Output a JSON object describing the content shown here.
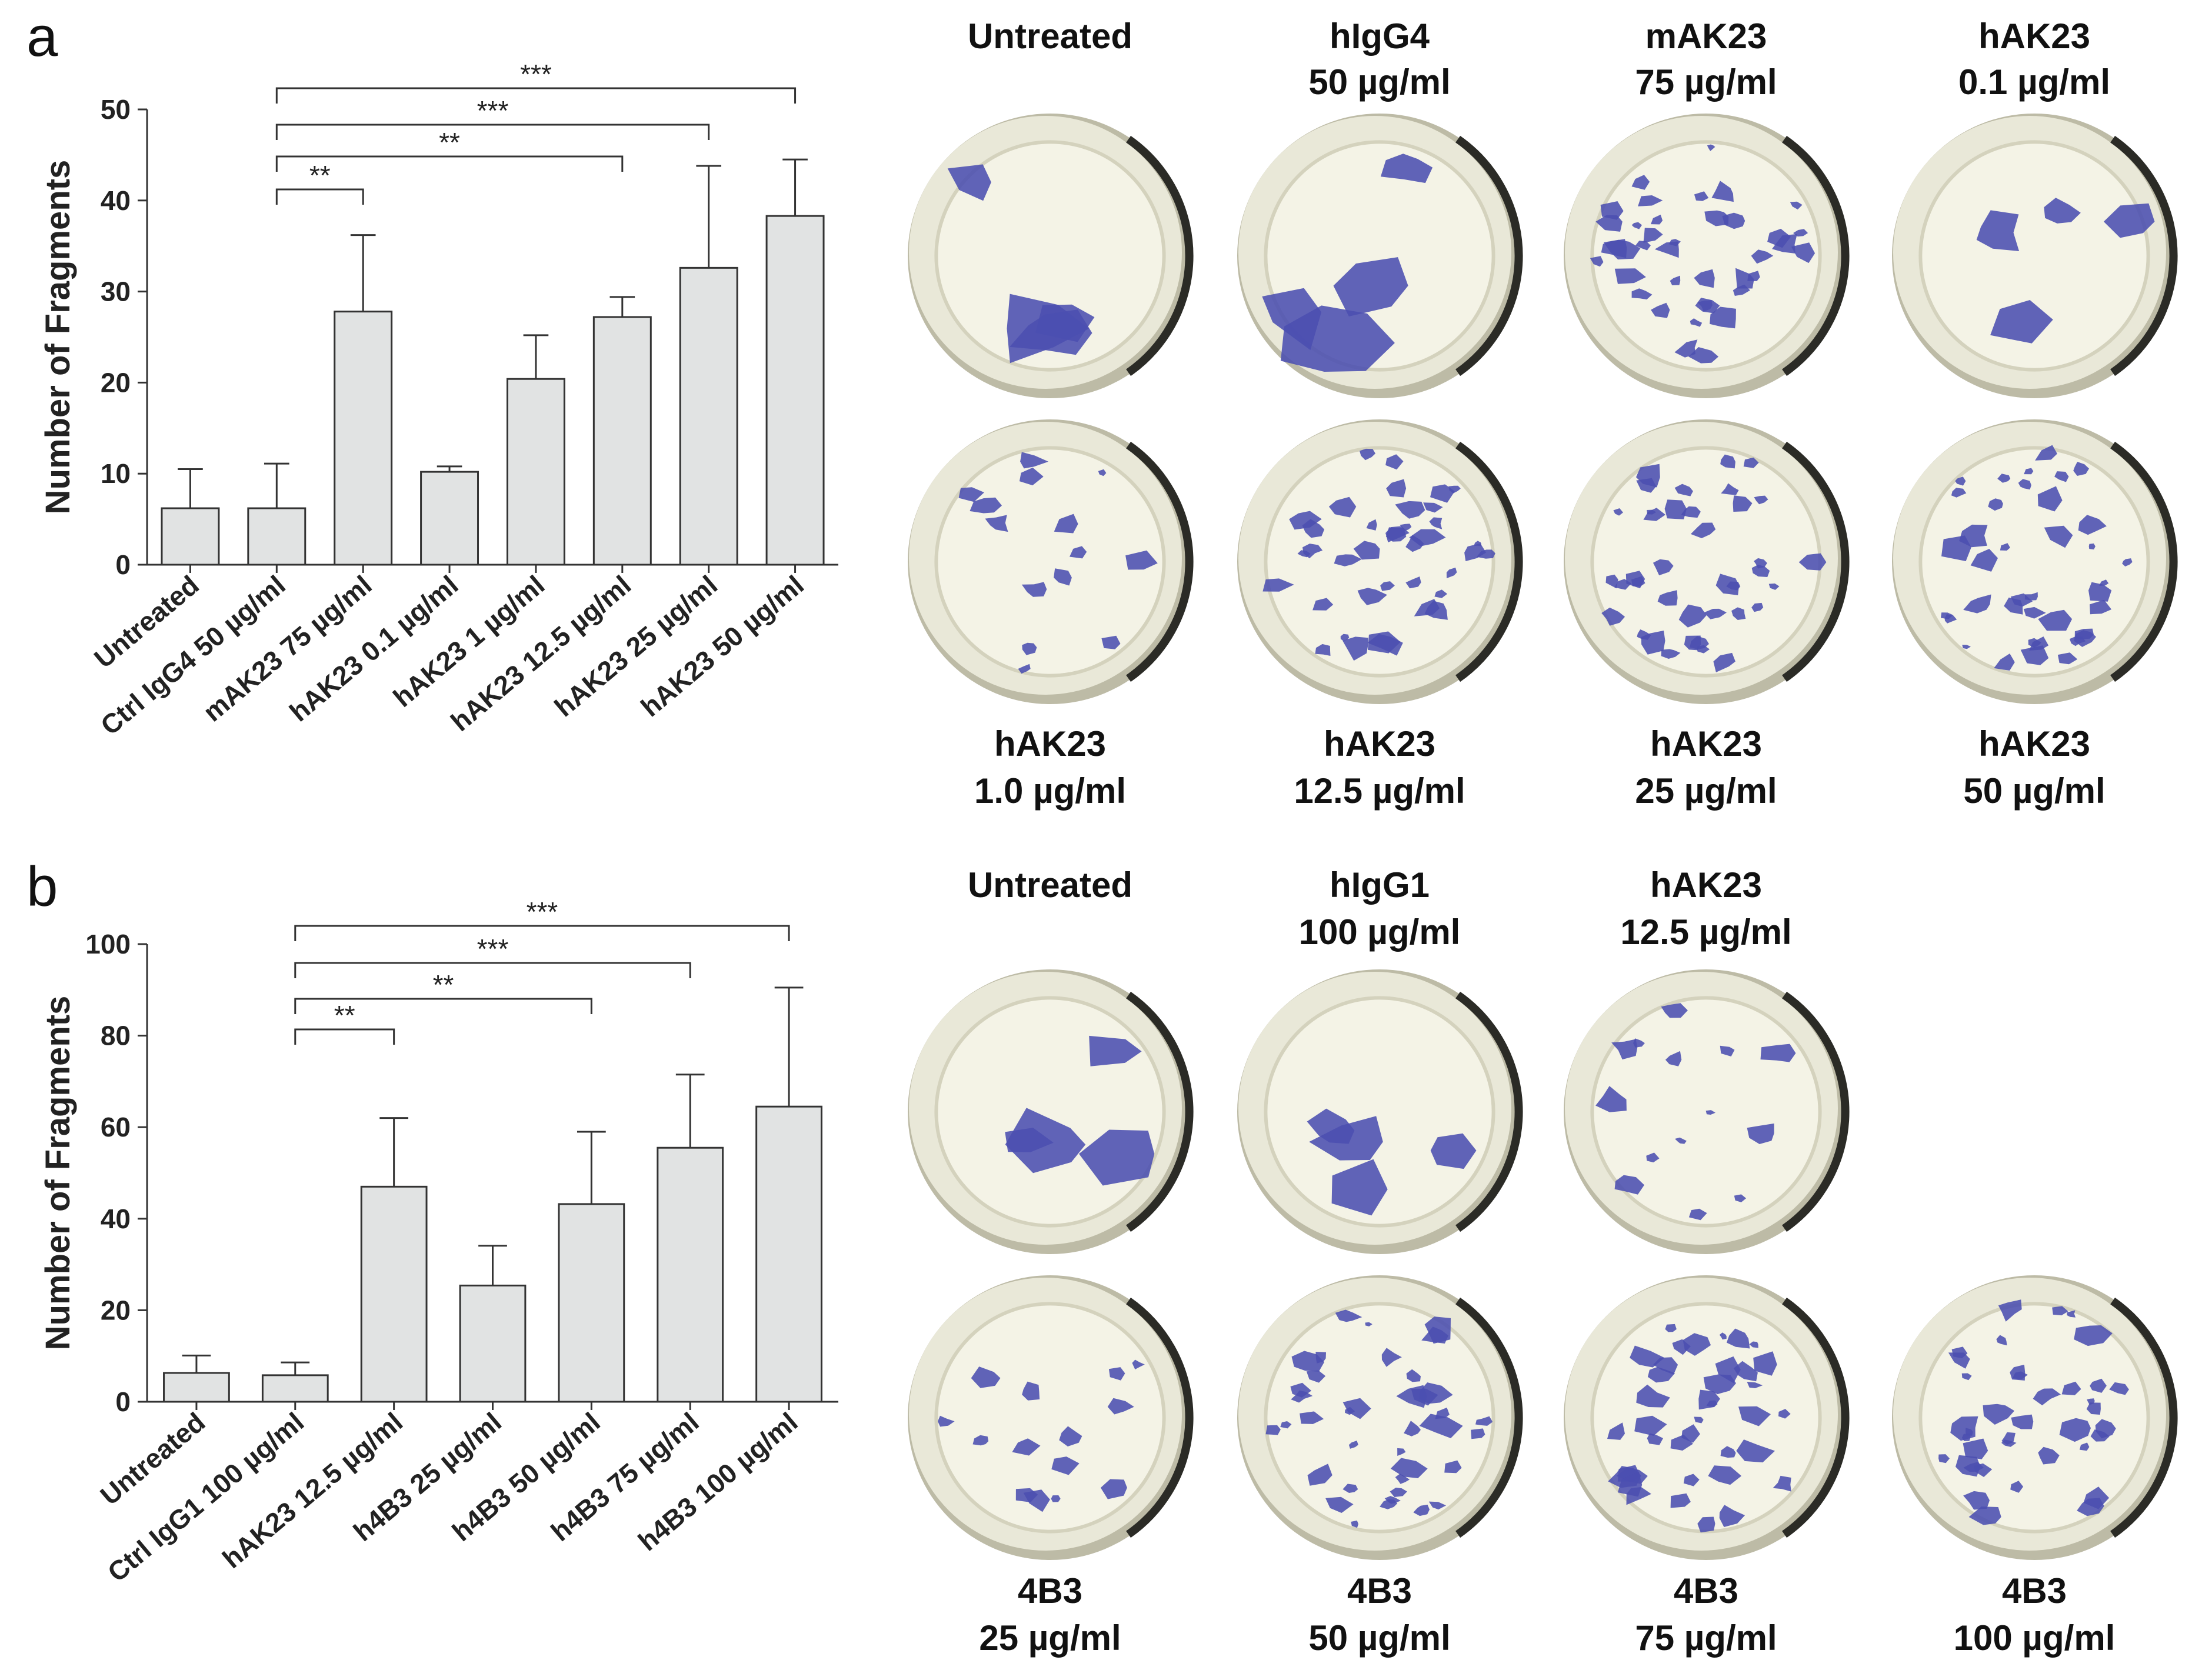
{
  "panels": {
    "a": {
      "letter": "a"
    },
    "b": {
      "letter": "b"
    }
  },
  "chart_data": [
    {
      "type": "bar",
      "panel": "a",
      "ylabel": "Number of Fragments",
      "xlabel": "",
      "ylim": [
        0,
        50
      ],
      "yticks": [
        0,
        10,
        20,
        30,
        40,
        50
      ],
      "grid": false,
      "bar_color": "#e1e3e3",
      "categories": [
        "Untreated",
        "Ctrl IgG4 50 µg/ml",
        "mAK23 75 µg/ml",
        "hAK23 0.1 µg/ml",
        "hAK23 1 µg/ml",
        "hAK23 12.5 µg/ml",
        "hAK23 25 µg/ml",
        "hAK23 50 µg/ml"
      ],
      "values": [
        6.2,
        6.2,
        27.8,
        10.2,
        20.4,
        27.2,
        32.6,
        38.3
      ],
      "errors": [
        4.3,
        4.9,
        8.4,
        0.6,
        4.8,
        2.2,
        11.2,
        6.2
      ],
      "significance": [
        {
          "from": 1,
          "to": 2,
          "label": "**"
        },
        {
          "from": 1,
          "to": 5,
          "label": "**"
        },
        {
          "from": 1,
          "to": 6,
          "label": "***"
        },
        {
          "from": 1,
          "to": 7,
          "label": "***"
        }
      ]
    },
    {
      "type": "bar",
      "panel": "b",
      "ylabel": "Number of Fragments",
      "xlabel": "",
      "ylim": [
        0,
        100
      ],
      "yticks": [
        0,
        20,
        40,
        60,
        80,
        100
      ],
      "grid": false,
      "bar_color": "#e1e3e3",
      "categories": [
        "Untreated",
        "Ctrl IgG1 100 µg/ml",
        "hAK23 12.5 µg/ml",
        "h4B3 25 µg/ml",
        "h4B3 50 µg/ml",
        "h4B3 75 µg/ml",
        "h4B3 100 µg/ml"
      ],
      "values": [
        6.3,
        5.8,
        47.0,
        25.4,
        43.2,
        55.5,
        64.5
      ],
      "errors": [
        3.8,
        2.8,
        15.0,
        8.7,
        15.8,
        16.0,
        26.0
      ],
      "significance": [
        {
          "from": 1,
          "to": 2,
          "label": "**"
        },
        {
          "from": 1,
          "to": 4,
          "label": "**"
        },
        {
          "from": 1,
          "to": 5,
          "label": "***"
        },
        {
          "from": 1,
          "to": 6,
          "label": "***"
        }
      ]
    }
  ],
  "wells_a": [
    {
      "top": "Untreated",
      "bottom": "",
      "fragments": "few"
    },
    {
      "top": "hIgG4",
      "bottom": "50 µg/ml",
      "fragments": "few"
    },
    {
      "top": "mAK23",
      "bottom": "75 µg/ml",
      "fragments": "many"
    },
    {
      "top": "hAK23",
      "bottom": "0.1 µg/ml",
      "fragments": "few"
    },
    {
      "top": "hAK23",
      "bottom": "1.0 µg/ml",
      "fragments": "some"
    },
    {
      "top": "hAK23",
      "bottom": "12.5 µg/ml",
      "fragments": "many"
    },
    {
      "top": "hAK23",
      "bottom": "25 µg/ml",
      "fragments": "many"
    },
    {
      "top": "hAK23",
      "bottom": "50 µg/ml",
      "fragments": "many"
    }
  ],
  "wells_b": [
    {
      "top": "Untreated",
      "bottom": "",
      "fragments": "few"
    },
    {
      "top": "hIgG1",
      "bottom": "100 µg/ml",
      "fragments": "few"
    },
    {
      "top": "hAK23",
      "bottom": "12.5 µg/ml",
      "fragments": "some"
    },
    {
      "top": "4B3",
      "bottom": "25 µg/ml",
      "fragments": "some"
    },
    {
      "top": "4B3",
      "bottom": "50 µg/ml",
      "fragments": "many"
    },
    {
      "top": "4B3",
      "bottom": "75 µg/ml",
      "fragments": "many"
    },
    {
      "top": "4B3",
      "bottom": "100 µg/ml",
      "fragments": "many"
    }
  ],
  "colors": {
    "stain": "#4b4fb0",
    "well_fill": "#f4f3e6",
    "well_rim": "#2b2b26",
    "axis": "#333333"
  }
}
